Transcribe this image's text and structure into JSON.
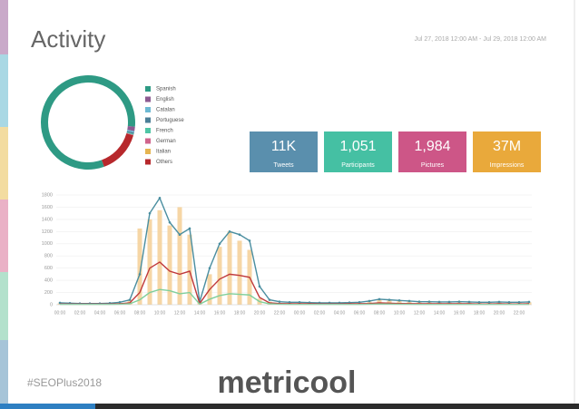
{
  "header": {
    "title": "Activity",
    "date_range": "Jul 27, 2018 12:00 AM - Jul 29, 2018 12:00 AM"
  },
  "stats": [
    {
      "value": "11K",
      "label": "Tweets",
      "color": "#5a8fad"
    },
    {
      "value": "1,051",
      "label": "Participants",
      "color": "#45c0a3"
    },
    {
      "value": "1,984",
      "label": "Pictures",
      "color": "#cd5687"
    },
    {
      "value": "37M",
      "label": "Impressions",
      "color": "#e9a93b"
    }
  ],
  "footer": {
    "hashtag": "#SEOPlus2018",
    "logo": "metricool"
  },
  "chart_data": [
    {
      "type": "pie",
      "donut": true,
      "categories": [
        "Spanish",
        "English",
        "Catalan",
        "Portuguese",
        "French",
        "German",
        "Italian",
        "Others"
      ],
      "values": [
        82,
        1.5,
        0.5,
        0.5,
        0.3,
        0.2,
        0,
        15
      ],
      "colors": [
        "#2e9a84",
        "#8c5a91",
        "#6cb9d3",
        "#4b7f97",
        "#4fc5a5",
        "#d0648c",
        "#e6b551",
        "#b7282c"
      ]
    },
    {
      "type": "line",
      "grid": true,
      "categories": [
        "00:00",
        null,
        "02:00",
        null,
        "04:00",
        null,
        "06:00",
        null,
        "08:00",
        null,
        "10:00",
        null,
        "12:00",
        null,
        "14:00",
        null,
        "16:00",
        null,
        "18:00",
        null,
        "20:00",
        null,
        "22:00",
        null,
        "00:00",
        null,
        "02:00",
        null,
        "04:00",
        null,
        "06:00",
        null,
        "08:00",
        null,
        "10:00",
        null,
        "12:00",
        null,
        "14:00",
        null,
        "16:00",
        null,
        "18:00",
        null,
        "20:00",
        null,
        "22:00",
        null
      ],
      "ylim": [
        0,
        1800
      ],
      "yticks": [
        0,
        200,
        400,
        600,
        800,
        1000,
        1200,
        1400,
        1600,
        1800
      ],
      "series": [
        {
          "type": "bar",
          "color": "#f5cf95",
          "values": [
            20,
            15,
            15,
            15,
            15,
            20,
            30,
            80,
            1250,
            1400,
            1550,
            1300,
            1600,
            1150,
            50,
            500,
            950,
            1200,
            1050,
            900,
            100,
            50,
            30,
            30,
            30,
            30,
            25,
            25,
            25,
            30,
            35,
            50,
            80,
            70,
            60,
            50,
            45,
            45,
            40,
            40,
            45,
            40,
            35,
            35,
            40,
            35,
            35,
            40
          ]
        },
        {
          "type": "line",
          "color": "#4a8ea0",
          "markers": true,
          "values": [
            30,
            25,
            20,
            20,
            20,
            25,
            40,
            80,
            500,
            1500,
            1750,
            1350,
            1150,
            1250,
            50,
            600,
            1000,
            1200,
            1150,
            1050,
            300,
            80,
            50,
            40,
            40,
            35,
            30,
            30,
            30,
            35,
            40,
            60,
            90,
            80,
            70,
            60,
            50,
            50,
            45,
            45,
            50,
            45,
            40,
            40,
            45,
            40,
            40,
            45
          ]
        },
        {
          "type": "line",
          "color": "#c0393b",
          "markers": false,
          "values": [
            10,
            10,
            10,
            10,
            10,
            10,
            15,
            30,
            200,
            600,
            700,
            550,
            500,
            550,
            20,
            250,
            420,
            500,
            480,
            450,
            120,
            30,
            20,
            15,
            15,
            15,
            12,
            12,
            12,
            15,
            15,
            20,
            30,
            25,
            20,
            18,
            15,
            15,
            15,
            15,
            15,
            15,
            12,
            12,
            15,
            12,
            12,
            15
          ]
        },
        {
          "type": "line",
          "color": "#7fcf9b",
          "markers": false,
          "values": [
            5,
            5,
            5,
            5,
            5,
            5,
            8,
            15,
            80,
            200,
            250,
            230,
            180,
            200,
            10,
            90,
            150,
            180,
            170,
            160,
            50,
            15,
            8,
            5,
            5,
            5,
            5,
            5,
            5,
            5,
            5,
            8,
            12,
            10,
            8,
            6,
            5,
            5,
            5,
            5,
            5,
            5,
            5,
            5,
            5,
            5,
            5,
            5
          ]
        }
      ]
    }
  ]
}
